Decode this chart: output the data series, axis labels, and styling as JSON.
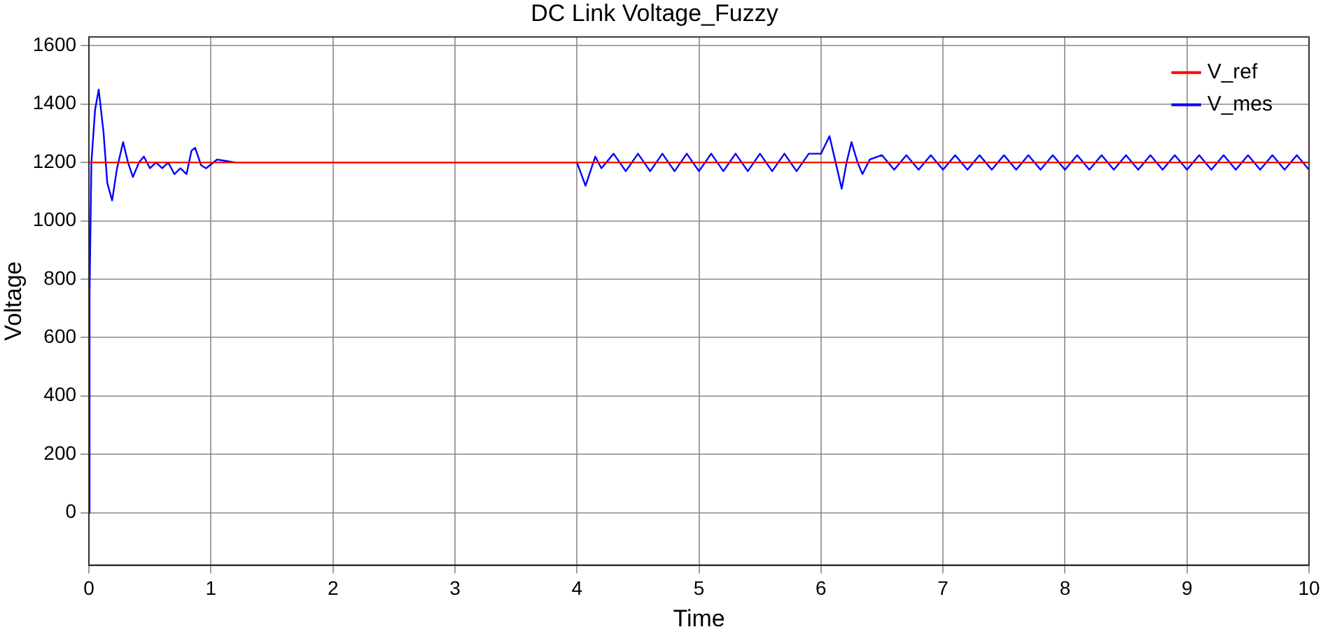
{
  "chart_data": {
    "type": "line",
    "title": "DC Link Voltage_Fuzzy",
    "xlabel": "Time",
    "ylabel": "Voltage",
    "xlim": [
      0,
      10
    ],
    "xticks": [
      0,
      1,
      2,
      3,
      4,
      5,
      6,
      7,
      8,
      9,
      10
    ],
    "ylim": [
      -180,
      1630
    ],
    "yticks": [
      0,
      200,
      400,
      600,
      800,
      1000,
      1200,
      1400,
      1600
    ],
    "grid": true,
    "legend": "top right",
    "marker": "none",
    "line_style": "solid",
    "series": [
      {
        "name": "V_ref",
        "color": "#ff0000",
        "x": [
          0,
          10
        ],
        "values": [
          1200,
          1200
        ]
      },
      {
        "name": "V_mes",
        "color": "#0000ff",
        "x": [
          0,
          0.005,
          0.02,
          0.05,
          0.08,
          0.12,
          0.15,
          0.19,
          0.23,
          0.28,
          0.32,
          0.36,
          0.41,
          0.45,
          0.5,
          0.55,
          0.6,
          0.65,
          0.7,
          0.75,
          0.8,
          0.84,
          0.87,
          0.92,
          0.96,
          1.05,
          1.2,
          4.0,
          4.07,
          4.15,
          4.2,
          4.3,
          4.4,
          4.5,
          4.6,
          4.7,
          4.8,
          4.9,
          5.0,
          5.1,
          5.2,
          5.3,
          5.4,
          5.5,
          5.6,
          5.7,
          5.8,
          5.9,
          6.0,
          6.07,
          6.12,
          6.17,
          6.21,
          6.25,
          6.3,
          6.34,
          6.4,
          6.5,
          6.6,
          6.7,
          6.8,
          6.9,
          7.0,
          7.1,
          7.2,
          7.3,
          7.4,
          7.5,
          7.6,
          7.7,
          7.8,
          7.9,
          8.0,
          8.1,
          8.2,
          8.3,
          8.4,
          8.5,
          8.6,
          8.7,
          8.8,
          8.9,
          9.0,
          9.1,
          9.2,
          9.3,
          9.4,
          9.5,
          9.6,
          9.7,
          9.8,
          9.9,
          10.0
        ],
        "values": [
          0,
          750,
          1200,
          1380,
          1450,
          1300,
          1130,
          1070,
          1180,
          1270,
          1200,
          1150,
          1200,
          1220,
          1180,
          1200,
          1180,
          1200,
          1160,
          1180,
          1160,
          1240,
          1250,
          1190,
          1180,
          1210,
          1200,
          1200,
          1120,
          1220,
          1180,
          1230,
          1170,
          1230,
          1170,
          1230,
          1170,
          1230,
          1170,
          1230,
          1170,
          1230,
          1170,
          1230,
          1170,
          1230,
          1170,
          1230,
          1230,
          1290,
          1200,
          1110,
          1200,
          1270,
          1200,
          1160,
          1210,
          1225,
          1175,
          1225,
          1175,
          1225,
          1175,
          1225,
          1175,
          1225,
          1175,
          1225,
          1175,
          1225,
          1175,
          1225,
          1175,
          1225,
          1175,
          1225,
          1175,
          1225,
          1175,
          1225,
          1175,
          1225,
          1175,
          1225,
          1175,
          1225,
          1175,
          1225,
          1175,
          1225,
          1175,
          1225,
          1175
        ]
      }
    ]
  }
}
